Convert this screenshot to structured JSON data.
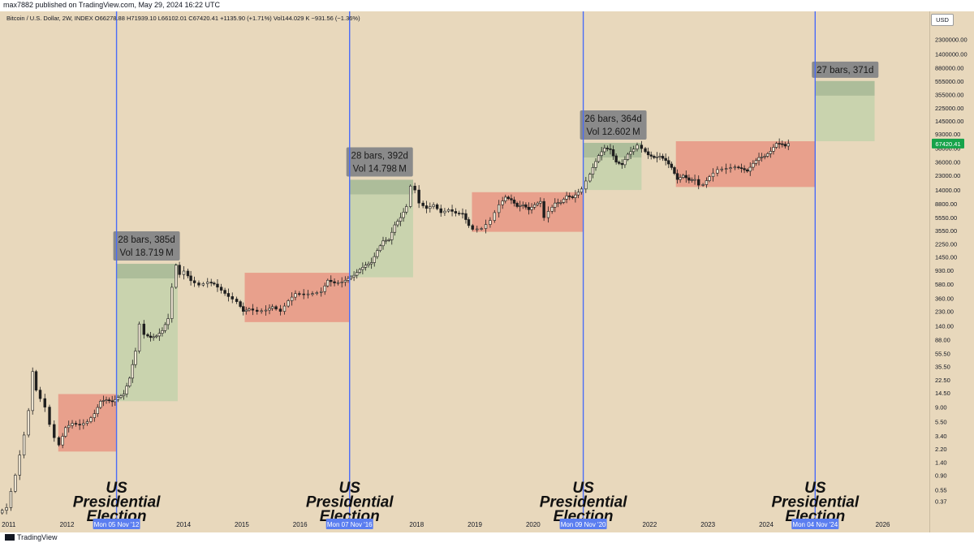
{
  "header": {
    "text": "max7882 published on TradingView.com, May 29, 2024 16:22 UTC"
  },
  "symbol_info": "Bitcoin / U.S. Dollar, 2W, INDEX  O66278.88  H71939.10  L66102.01  C67420.41  +1135.90 (+1.71%)  Vol144.029 K  −931.56 (−1.36%)",
  "currency_button": "USD",
  "footer": {
    "brand": "TradingView"
  },
  "colors": {
    "background": "#e8d8bc",
    "election_line": "#4a6cf7",
    "red_zone": "#e89a86",
    "green_zone": "#c7d3ad",
    "label_box": "#8a8a8a",
    "date_label": "#5b7ef0",
    "price_tag": "#16a34a",
    "candle": "#1e1e1e"
  },
  "chart_data": {
    "type": "candlestick",
    "x_axis": {
      "labels": [
        "2011",
        "2012",
        "2014",
        "2015",
        "2016",
        "2018",
        "2019",
        "2020",
        "2022",
        "2023",
        "2024",
        "2026"
      ],
      "start": 2010.85,
      "end": 2026.8
    },
    "y_axis": {
      "scale": "log",
      "ylim": [
        0.25,
        4500000
      ],
      "tick_labels": [
        "2300000.00",
        "1400000.00",
        "880000.00",
        "555000.00",
        "355000.00",
        "225000.00",
        "145000.00",
        "93000.00",
        "58000.00",
        "36000.00",
        "23000.00",
        "14000.00",
        "8800.00",
        "5550.00",
        "3550.00",
        "2250.00",
        "1450.00",
        "930.00",
        "580.00",
        "360.00",
        "230.00",
        "140.00",
        "88.00",
        "55.50",
        "35.50",
        "22.50",
        "14.50",
        "9.00",
        "5.50",
        "3.40",
        "2.20",
        "1.40",
        "0.90",
        "0.55",
        "0.37"
      ],
      "current_price": "67420.41"
    },
    "elections": [
      {
        "date_label": "Mon 05 Nov '12",
        "x": 2012.85,
        "title_lines": [
          "US",
          "Presidential",
          "Election"
        ]
      },
      {
        "date_label": "Mon 07 Nov '16",
        "x": 2016.85,
        "title_lines": [
          "US",
          "Presidential",
          "Election"
        ]
      },
      {
        "date_label": "Mon 09 Nov '20",
        "x": 2020.86,
        "title_lines": [
          "US",
          "Presidential",
          "Election"
        ]
      },
      {
        "date_label": "Mon 04 Nov '24",
        "x": 2024.84,
        "title_lines": [
          "US",
          "Presidential",
          "Election"
        ]
      }
    ],
    "pre_election_zones": [
      {
        "x0": 2011.85,
        "x1": 2012.85,
        "y_low": 2.0,
        "y_high": 14.0
      },
      {
        "x0": 2015.05,
        "x1": 2016.85,
        "y_low": 160,
        "y_high": 850
      },
      {
        "x0": 2018.95,
        "x1": 2020.86,
        "y_low": 3400,
        "y_high": 13000
      },
      {
        "x0": 2022.45,
        "x1": 2024.84,
        "y_low": 15500,
        "y_high": 73000
      }
    ],
    "post_election_rallies": [
      {
        "x0": 2012.85,
        "x1": 2013.9,
        "y_low": 11,
        "y_high": 1150,
        "bars": "28 bars, 385d",
        "volume": "Vol 18.719 M"
      },
      {
        "x0": 2016.85,
        "x1": 2017.94,
        "y_low": 730,
        "y_high": 19800,
        "bars": "28 bars, 392d",
        "volume": "Vol 14.798 M"
      },
      {
        "x0": 2020.86,
        "x1": 2021.86,
        "y_low": 14000,
        "y_high": 69000,
        "bars": "26 bars, 364d",
        "volume": "Vol 12.602 M"
      },
      {
        "x0": 2024.84,
        "x1": 2025.86,
        "y_low": 73000,
        "y_high": 560000,
        "bars": "27 bars, 371d",
        "volume": ""
      }
    ],
    "price_path": [
      [
        2010.85,
        0.25
      ],
      [
        2011.0,
        0.3
      ],
      [
        2011.15,
        0.9
      ],
      [
        2011.3,
        3.5
      ],
      [
        2011.38,
        8
      ],
      [
        2011.44,
        30
      ],
      [
        2011.5,
        16
      ],
      [
        2011.58,
        12
      ],
      [
        2011.66,
        9
      ],
      [
        2011.74,
        5
      ],
      [
        2011.82,
        3.2
      ],
      [
        2011.9,
        2.5
      ],
      [
        2012.0,
        4.5
      ],
      [
        2012.12,
        5.2
      ],
      [
        2012.25,
        4.9
      ],
      [
        2012.38,
        5.5
      ],
      [
        2012.5,
        7.2
      ],
      [
        2012.6,
        11
      ],
      [
        2012.7,
        11.5
      ],
      [
        2012.8,
        10.8
      ],
      [
        2012.9,
        12.5
      ],
      [
        2013.0,
        14
      ],
      [
        2013.1,
        24
      ],
      [
        2013.2,
        60
      ],
      [
        2013.28,
        150
      ],
      [
        2013.36,
        105
      ],
      [
        2013.46,
        95
      ],
      [
        2013.56,
        100
      ],
      [
        2013.66,
        120
      ],
      [
        2013.76,
        180
      ],
      [
        2013.84,
        520
      ],
      [
        2013.9,
        1100
      ],
      [
        2013.96,
        800
      ],
      [
        2014.05,
        900
      ],
      [
        2014.15,
        650
      ],
      [
        2014.3,
        560
      ],
      [
        2014.45,
        620
      ],
      [
        2014.55,
        580
      ],
      [
        2014.68,
        470
      ],
      [
        2014.8,
        380
      ],
      [
        2014.95,
        320
      ],
      [
        2015.05,
        230
      ],
      [
        2015.15,
        250
      ],
      [
        2015.3,
        230
      ],
      [
        2015.45,
        240
      ],
      [
        2015.55,
        270
      ],
      [
        2015.7,
        230
      ],
      [
        2015.83,
        330
      ],
      [
        2015.95,
        420
      ],
      [
        2016.1,
        410
      ],
      [
        2016.25,
        420
      ],
      [
        2016.4,
        450
      ],
      [
        2016.5,
        660
      ],
      [
        2016.62,
        600
      ],
      [
        2016.75,
        620
      ],
      [
        2016.85,
        700
      ],
      [
        2016.95,
        780
      ],
      [
        2017.05,
        950
      ],
      [
        2017.15,
        1100
      ],
      [
        2017.25,
        1200
      ],
      [
        2017.35,
        1800
      ],
      [
        2017.45,
        2500
      ],
      [
        2017.55,
        2600
      ],
      [
        2017.65,
        4300
      ],
      [
        2017.75,
        5500
      ],
      [
        2017.85,
        8000
      ],
      [
        2017.94,
        16000
      ],
      [
        2018.0,
        14000
      ],
      [
        2018.08,
        9000
      ],
      [
        2018.2,
        7500
      ],
      [
        2018.32,
        8500
      ],
      [
        2018.45,
        6500
      ],
      [
        2018.58,
        7200
      ],
      [
        2018.7,
        6400
      ],
      [
        2018.82,
        6300
      ],
      [
        2018.92,
        4200
      ],
      [
        2019.0,
        3700
      ],
      [
        2019.15,
        3800
      ],
      [
        2019.3,
        5000
      ],
      [
        2019.45,
        8500
      ],
      [
        2019.55,
        11000
      ],
      [
        2019.65,
        10000
      ],
      [
        2019.75,
        8000
      ],
      [
        2019.85,
        8500
      ],
      [
        2019.95,
        7200
      ],
      [
        2020.05,
        8500
      ],
      [
        2020.15,
        9500
      ],
      [
        2020.22,
        5500
      ],
      [
        2020.3,
        6800
      ],
      [
        2020.4,
        9000
      ],
      [
        2020.5,
        9200
      ],
      [
        2020.6,
        11500
      ],
      [
        2020.7,
        10800
      ],
      [
        2020.8,
        13000
      ],
      [
        2020.86,
        14500
      ],
      [
        2020.95,
        19000
      ],
      [
        2021.05,
        30000
      ],
      [
        2021.15,
        45000
      ],
      [
        2021.25,
        58000
      ],
      [
        2021.35,
        55000
      ],
      [
        2021.45,
        36000
      ],
      [
        2021.55,
        33000
      ],
      [
        2021.65,
        47000
      ],
      [
        2021.75,
        56000
      ],
      [
        2021.82,
        64000
      ],
      [
        2021.9,
        57000
      ],
      [
        2022.0,
        46000
      ],
      [
        2022.1,
        42000
      ],
      [
        2022.2,
        44000
      ],
      [
        2022.3,
        38000
      ],
      [
        2022.4,
        30000
      ],
      [
        2022.5,
        20000
      ],
      [
        2022.6,
        23000
      ],
      [
        2022.7,
        19500
      ],
      [
        2022.8,
        20000
      ],
      [
        2022.88,
        16500
      ],
      [
        2022.95,
        16800
      ],
      [
        2023.05,
        22000
      ],
      [
        2023.2,
        28000
      ],
      [
        2023.35,
        29000
      ],
      [
        2023.5,
        30500
      ],
      [
        2023.6,
        29000
      ],
      [
        2023.7,
        26500
      ],
      [
        2023.8,
        34500
      ],
      [
        2023.9,
        42000
      ],
      [
        2024.0,
        44000
      ],
      [
        2024.1,
        52000
      ],
      [
        2024.2,
        68000
      ],
      [
        2024.3,
        66000
      ],
      [
        2024.35,
        62000
      ],
      [
        2024.41,
        67400
      ]
    ]
  }
}
